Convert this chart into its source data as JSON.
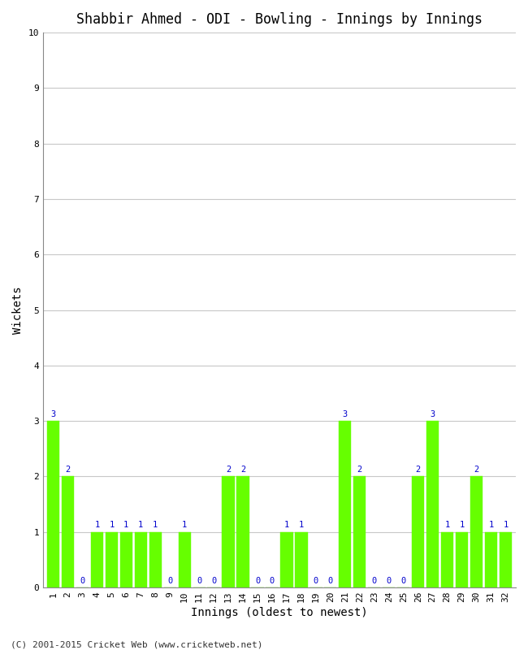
{
  "title": "Shabbir Ahmed - ODI - Bowling - Innings by Innings",
  "xlabel": "Innings (oldest to newest)",
  "ylabel": "Wickets",
  "footnote": "(C) 2001-2015 Cricket Web (www.cricketweb.net)",
  "innings": [
    1,
    2,
    3,
    4,
    5,
    6,
    7,
    8,
    9,
    10,
    11,
    12,
    13,
    14,
    15,
    16,
    17,
    18,
    19,
    20,
    21,
    22,
    23,
    24,
    25,
    26,
    27,
    28,
    29,
    30,
    31,
    32
  ],
  "wickets": [
    3,
    2,
    0,
    1,
    1,
    1,
    1,
    1,
    0,
    1,
    0,
    0,
    2,
    2,
    0,
    0,
    1,
    1,
    0,
    0,
    3,
    2,
    0,
    0,
    0,
    2,
    3,
    1,
    1,
    2,
    1,
    1
  ],
  "bar_color": "#66ff00",
  "bar_edge_color": "#66ff00",
  "label_color": "#0000cc",
  "ylim": [
    0,
    10
  ],
  "yticks": [
    0,
    1,
    2,
    3,
    4,
    5,
    6,
    7,
    8,
    9,
    10
  ],
  "background_color": "#ffffff",
  "grid_color": "#c8c8c8",
  "title_fontsize": 12,
  "axis_label_fontsize": 10,
  "tick_fontsize": 8,
  "label_fontsize": 7.5
}
